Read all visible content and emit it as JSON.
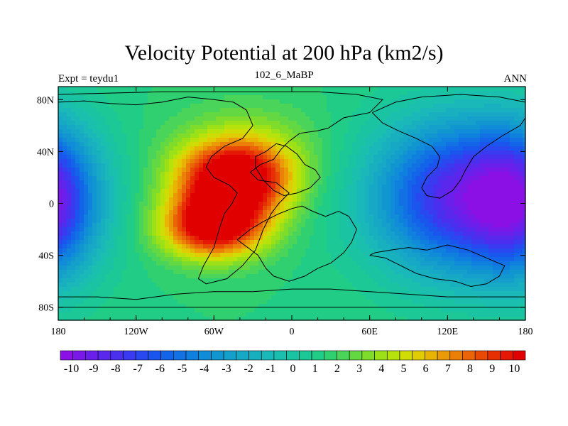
{
  "chart_data": {
    "type": "heatmap",
    "title": "Velocity Potential at 200 hPa (km2/s)",
    "left_label": "Expt = teydu1",
    "center_label": "102_6_MaBP",
    "right_label": "ANN",
    "x_range": [
      -180,
      180
    ],
    "y_range": [
      -90,
      90
    ],
    "x_ticks": [
      {
        "value": -180,
        "label": "180"
      },
      {
        "value": -120,
        "label": "120W"
      },
      {
        "value": -60,
        "label": "60W"
      },
      {
        "value": 0,
        "label": "0"
      },
      {
        "value": 60,
        "label": "60E"
      },
      {
        "value": 120,
        "label": "120E"
      },
      {
        "value": 180,
        "label": "180"
      }
    ],
    "y_ticks": [
      {
        "value": 80,
        "label": "80N"
      },
      {
        "value": 40,
        "label": "40N"
      },
      {
        "value": 0,
        "label": "0"
      },
      {
        "value": -40,
        "label": "40S"
      },
      {
        "value": -80,
        "label": "80S"
      }
    ],
    "colorbar": {
      "min": -10.5,
      "max": 10.5,
      "step": 0.5,
      "labels": [
        "-10",
        "-9",
        "-8",
        "-7",
        "-6",
        "-5",
        "-4",
        "-3",
        "-2",
        "-1",
        "0",
        "1",
        "2",
        "3",
        "4",
        "5",
        "6",
        "7",
        "8",
        "9",
        "10"
      ],
      "colors": [
        "#8a10e6",
        "#7a18e8",
        "#6a20ea",
        "#5a28ec",
        "#4a30ee",
        "#3a3af0",
        "#2a48f0",
        "#1a56ee",
        "#1464ea",
        "#1272e4",
        "#1080de",
        "#108cd8",
        "#1296d0",
        "#14a0ca",
        "#16a8c4",
        "#18b0be",
        "#1ab8b8",
        "#1abfae",
        "#1ac4a2",
        "#1cc896",
        "#20cc86",
        "#30d070",
        "#4ad45a",
        "#64d842",
        "#80dc2a",
        "#9ce018",
        "#b8e20c",
        "#d0dc06",
        "#e0cc04",
        "#e8b404",
        "#ea9a06",
        "#ea8008",
        "#ea6408",
        "#e84a06",
        "#e63004",
        "#e41804",
        "#e00000"
      ]
    },
    "field_centers": [
      {
        "lon": -45,
        "lat": 18,
        "amp": 9.2,
        "slon": 30,
        "slat": 20
      },
      {
        "lon": -60,
        "lat": -18,
        "amp": 8.8,
        "slon": 28,
        "slat": 17
      },
      {
        "lon": -35,
        "lat": 40,
        "amp": 2.0,
        "slon": 40,
        "slat": 25
      },
      {
        "lon": 130,
        "lat": 5,
        "amp": -8.8,
        "slon": 48,
        "slat": 42
      },
      {
        "lon": -185,
        "lat": 0,
        "amp": -2.5,
        "slon": 25,
        "slat": 40
      },
      {
        "lon": 175,
        "lat": 0,
        "amp": -2.5,
        "slon": 25,
        "slat": 40
      }
    ]
  }
}
